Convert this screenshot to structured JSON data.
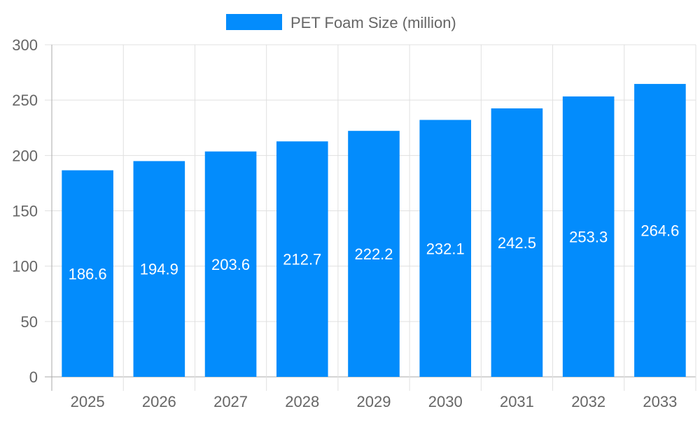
{
  "chart_data": {
    "type": "bar",
    "title": "",
    "xlabel": "",
    "ylabel": "",
    "categories": [
      "2025",
      "2026",
      "2027",
      "2028",
      "2029",
      "2030",
      "2031",
      "2032",
      "2033"
    ],
    "series": [
      {
        "name": "PET Foam Size (million)",
        "values": [
          186.6,
          194.9,
          203.6,
          212.7,
          222.2,
          232.1,
          242.5,
          253.3,
          264.6
        ],
        "color": "#038cfc"
      }
    ],
    "data_labels": [
      "186.6",
      "194.9",
      "203.6",
      "212.7",
      "222.2",
      "232.1",
      "242.5",
      "253.3",
      "264.6"
    ],
    "ylim": [
      0,
      300
    ],
    "y_ticks": [
      "0",
      "50",
      "100",
      "150",
      "200",
      "250",
      "300"
    ],
    "grid": true,
    "legend_position": "top"
  }
}
